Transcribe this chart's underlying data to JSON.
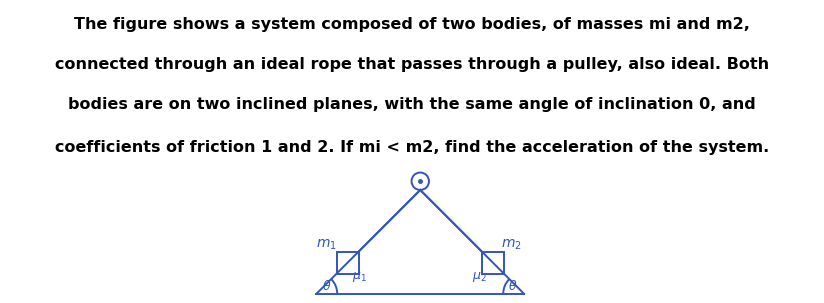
{
  "diagram_color": "#3355bb",
  "text_color": "#000000",
  "font_size_text": 11.5,
  "fig_width": 8.24,
  "fig_height": 3.03,
  "dpi": 100,
  "lines": [
    "The figure shows a system composed of two bodies, of masses mi and m2,",
    "connected through an ideal rope that passes through a pulley, also ideal. Both",
    "bodies are on two inclined planes, with the same angle of inclination 0, and",
    "coefficients of friction 1 and 2. If mi < m2, find the acceleration of the system."
  ]
}
